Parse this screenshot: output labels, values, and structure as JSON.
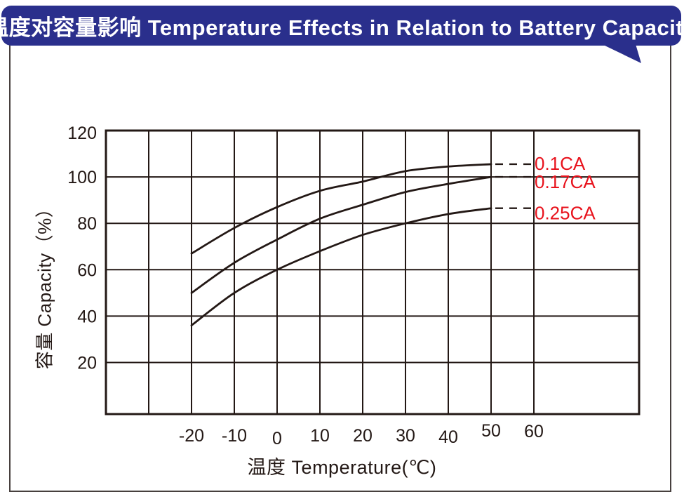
{
  "header": {
    "title": "温度对容量影响  Temperature Effects in Relation to Battery Capacity",
    "bg_color": "#2a2f8c",
    "text_color": "#ffffff"
  },
  "chart_data": {
    "type": "line",
    "title": "Temperature Effects in Relation to Battery Capacity",
    "xlabel": "温度  Temperature(℃)",
    "ylabel": "容量  Capacity（%）",
    "x_ticks": [
      -20,
      -10,
      0,
      10,
      20,
      30,
      40,
      50,
      60
    ],
    "y_ticks": [
      120,
      100,
      80,
      60,
      40,
      20
    ],
    "xlim_grid": [
      -40,
      60
    ],
    "x_grid_step": 10,
    "ylim": [
      0,
      120
    ],
    "grid": true,
    "x": [
      -20,
      -10,
      0,
      10,
      20,
      30,
      40,
      50
    ],
    "series": [
      {
        "name": "0.1CA",
        "values": [
          67,
          78,
          87,
          94,
          98,
          102.5,
          104.5,
          105.5
        ]
      },
      {
        "name": "0.17CA",
        "values": [
          50,
          63,
          73,
          82,
          88,
          93.5,
          97,
          100
        ]
      },
      {
        "name": "0.25CA",
        "values": [
          36,
          50,
          60,
          68,
          75,
          80,
          84,
          86.5
        ]
      }
    ],
    "annotation_style": "dashed-leader",
    "legend_position": "right-inline",
    "line_color": "#231815",
    "label_color": "#e8121c"
  }
}
